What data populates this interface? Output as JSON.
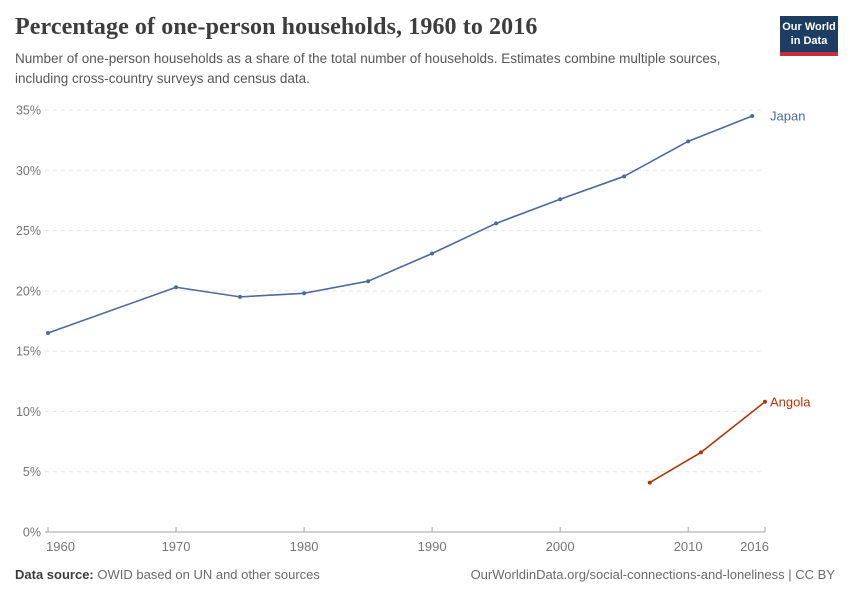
{
  "header": {
    "title": "Percentage of one-person households, 1960 to 2016",
    "subtitle": "Number of one-person households as a share of the total number of households. Estimates combine multiple sources, including cross-country surveys and census data."
  },
  "logo": {
    "line1": "Our World",
    "line2": "in Data",
    "bg_color": "#1d3d63",
    "accent_color": "#c7303f"
  },
  "footer": {
    "source_label": "Data source:",
    "source_text": " OWID based on UN and other sources",
    "link_text": "OurWorldinData.org/social-connections-and-loneliness",
    "license_text": " | CC BY"
  },
  "chart_data": {
    "type": "line",
    "title": "Percentage of one-person households, 1960 to 2016",
    "xlabel": "",
    "ylabel": "",
    "xlim": [
      1960,
      2016
    ],
    "ylim": [
      0,
      35
    ],
    "x_ticks": [
      1960,
      1970,
      1980,
      1990,
      2000,
      2010,
      2016
    ],
    "y_ticks": [
      0,
      5,
      10,
      15,
      20,
      25,
      30,
      35
    ],
    "y_tick_suffix": "%",
    "grid": true,
    "legend_position": "right-end-of-line",
    "colors": {
      "gridline": "#e3e3e3",
      "axis": "#a3a3a3",
      "tick_label": "#757575"
    },
    "series": [
      {
        "name": "Japan",
        "color": "#4C6A9C",
        "x": [
          1960,
          1970,
          1975,
          1980,
          1985,
          1990,
          1995,
          2000,
          2005,
          2010,
          2015
        ],
        "y": [
          16.5,
          20.3,
          19.5,
          19.8,
          20.8,
          23.1,
          25.6,
          27.6,
          29.5,
          32.4,
          34.5
        ]
      },
      {
        "name": "Angola",
        "color": "#B13507",
        "x": [
          2007,
          2011,
          2016
        ],
        "y": [
          4.1,
          6.6,
          10.8
        ]
      }
    ]
  }
}
